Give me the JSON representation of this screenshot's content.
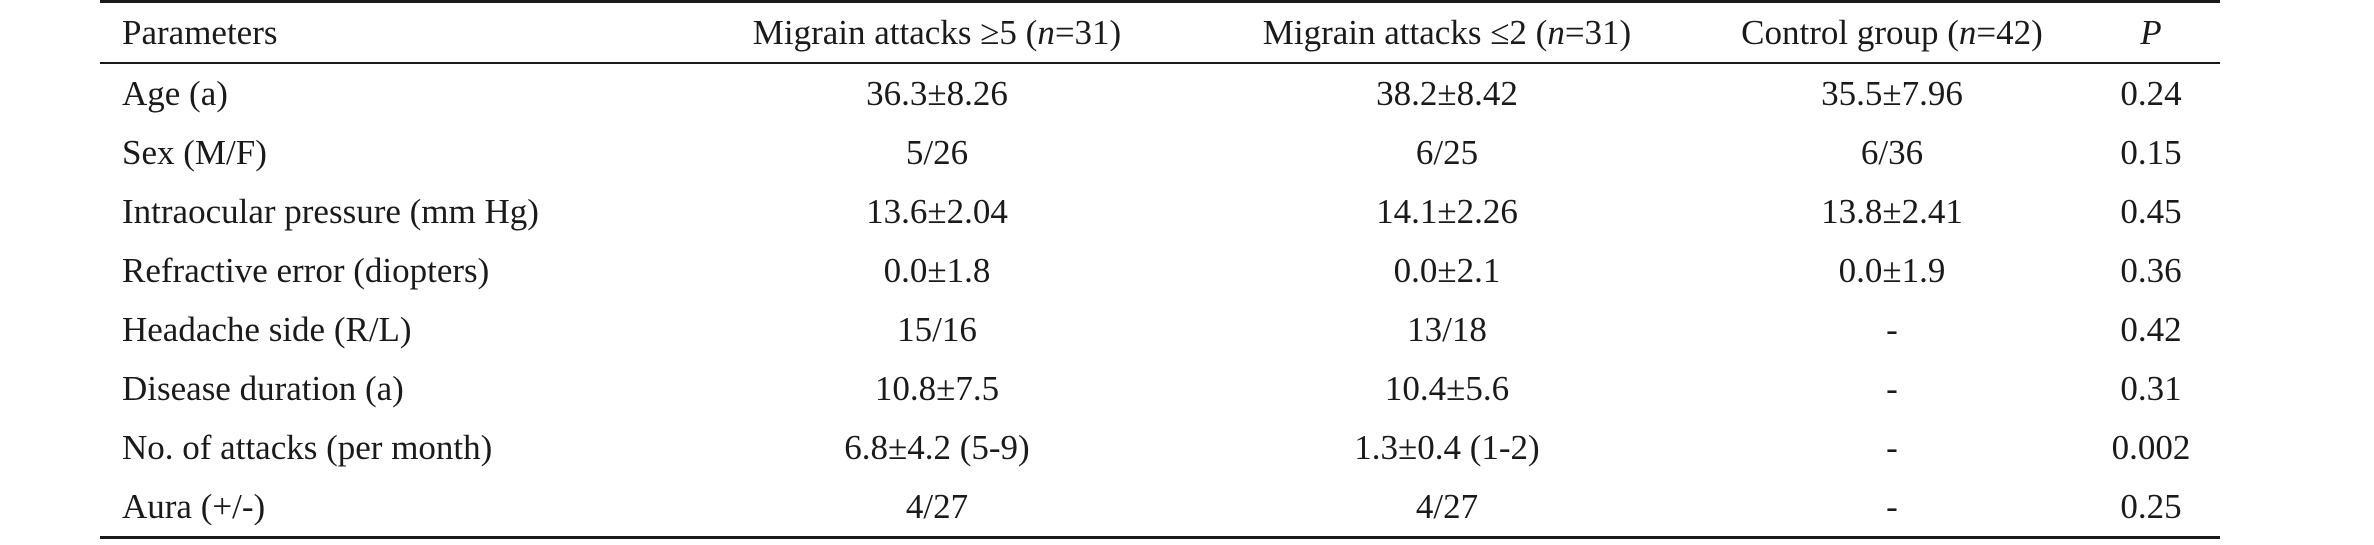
{
  "table": {
    "headers": [
      {
        "pre": "Parameters",
        "ital": "",
        "post": ""
      },
      {
        "pre": "Migrain attacks ≥5 (",
        "ital": "n",
        "post": "=31)"
      },
      {
        "pre": "Migrain attacks ≤2 (",
        "ital": "n",
        "post": "=31)"
      },
      {
        "pre": "Control group (",
        "ital": "n",
        "post": "=42)"
      },
      {
        "pre": "",
        "ital": "P",
        "post": ""
      }
    ],
    "rows": [
      [
        "Age (a)",
        "36.3±8.26",
        "38.2±8.42",
        "35.5±7.96",
        "0.24"
      ],
      [
        "Sex (M/F)",
        "5/26",
        "6/25",
        "6/36",
        "0.15"
      ],
      [
        "Intraocular pressure (mm Hg)",
        "13.6±2.04",
        "14.1±2.26",
        "13.8±2.41",
        "0.45"
      ],
      [
        "Refractive error (diopters)",
        "0.0±1.8",
        "0.0±2.1",
        "0.0±1.9",
        "0.36"
      ],
      [
        "Headache side (R/L)",
        "15/16",
        "13/18",
        "-",
        "0.42"
      ],
      [
        "Disease duration (a)",
        "10.8±7.5",
        "10.4±5.6",
        "-",
        "0.31"
      ],
      [
        "No. of attacks (per month)",
        "6.8±4.2 (5-9)",
        "1.3±0.4 (1-2)",
        "-",
        "0.002"
      ],
      [
        "Aura (+/-)",
        "4/27",
        "4/27",
        "-",
        "0.25"
      ]
    ]
  }
}
